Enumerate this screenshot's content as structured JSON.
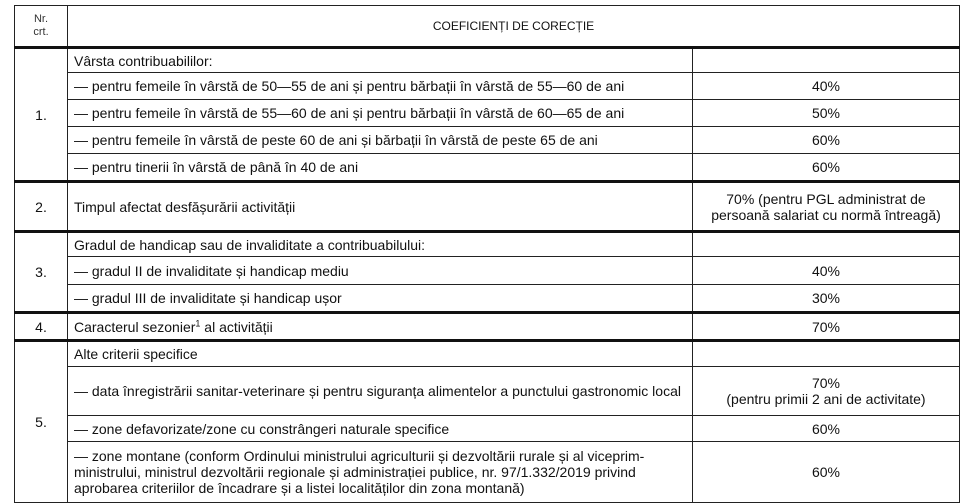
{
  "header": {
    "nr_line1": "Nr.",
    "nr_line2": "crt.",
    "title": "COEFICIENȚI DE CORECȚIE"
  },
  "groups": [
    {
      "nr": "1.",
      "rows": [
        {
          "criterion": "Vârsta contribuabililor:",
          "value": ""
        },
        {
          "criterion": "— pentru femeile în vârstă de 50—55 de ani și pentru bărbații în vârstă de 55—60 de ani",
          "value": "40%"
        },
        {
          "criterion": "— pentru femeile în vârstă de 55—60 de ani și pentru bărbații în vârstă de 60—65 de ani",
          "value": "50%"
        },
        {
          "criterion": "— pentru femeile în vârstă de peste 60 de ani și bărbații în vârstă de peste 65 de ani",
          "value": "60%"
        },
        {
          "criterion": "— pentru tinerii în vârstă de până în 40 de ani",
          "value": "60%"
        }
      ]
    },
    {
      "nr": "2.",
      "rows": [
        {
          "criterion": "Timpul afectat desfășurării activității",
          "value": "70% (pentru PGL administrat de persoană salariat cu normă întreagă)"
        }
      ]
    },
    {
      "nr": "3.",
      "rows": [
        {
          "criterion": "Gradul de handicap sau de invaliditate a contribuabilului:",
          "value": ""
        },
        {
          "criterion": "— gradul II de invaliditate și handicap mediu",
          "value": "40%"
        },
        {
          "criterion": "— gradul III de invaliditate și handicap ușor",
          "value": "30%"
        }
      ]
    },
    {
      "nr": "4.",
      "rows": [
        {
          "criterion": "Caracterul sezonier",
          "sup": "1",
          "criterion_tail": " al activității",
          "value": "70%"
        }
      ]
    },
    {
      "nr": "5.",
      "rows": [
        {
          "criterion": "Alte criterii specifice",
          "value": ""
        },
        {
          "criterion": "— data înregistrării sanitar-veterinare și pentru siguranța alimentelor a punctului gastronomic local",
          "value": "70%",
          "value_line2": "(pentru primii 2 ani de activitate)"
        },
        {
          "criterion": "— zone defavorizate/zone cu constrângeri naturale specifice",
          "value": "60%"
        },
        {
          "criterion": "— zone montane (conform Ordinului ministrului agriculturii și dezvoltării rurale și al viceprim-ministrului, ministrul dezvoltării regionale și administrației publice, nr. 97/1.332/2019 privind aprobarea criteriilor de încadrare și a listei localităților din zona montană)",
          "value": "60%"
        }
      ]
    }
  ]
}
